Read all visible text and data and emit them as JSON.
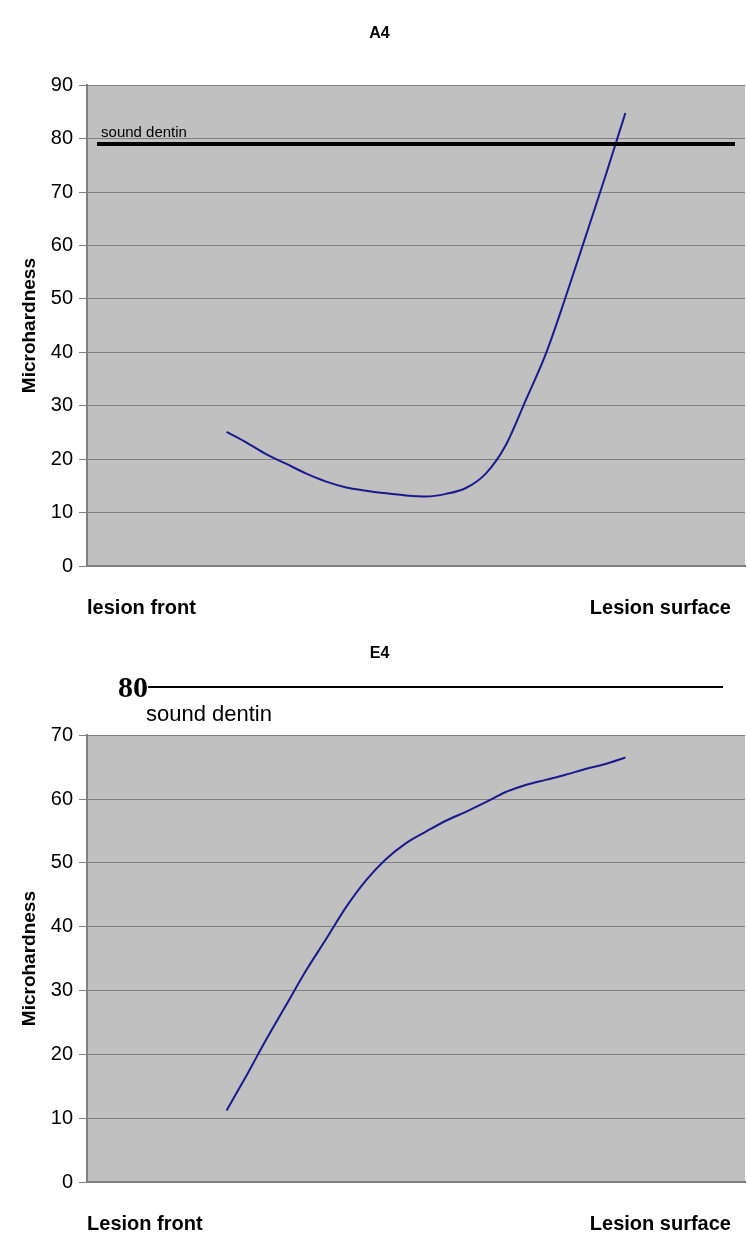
{
  "chart_data": [
    {
      "type": "line",
      "title": "A4",
      "ylabel": "Microhardness",
      "categories": [
        null,
        null,
        null,
        null,
        null,
        null,
        null,
        null,
        null,
        null,
        null,
        null,
        null,
        null,
        null,
        null,
        null,
        null,
        null,
        null,
        null,
        null,
        null,
        null,
        null,
        null,
        null,
        null,
        null,
        null,
        null,
        null,
        null,
        null
      ],
      "series": [
        {
          "color": "#1a1a8c",
          "values": [
            null,
            null,
            null,
            null,
            null,
            null,
            null,
            25.1,
            23.1,
            20.9,
            19.1,
            17.3,
            15.8,
            14.7,
            14.1,
            13.6,
            13.2,
            13.0,
            13.5,
            14.6,
            17.3,
            22.6,
            31.0,
            39.6,
            50.3,
            61.6,
            73.0,
            84.8,
            null,
            null,
            null,
            null,
            null,
            null
          ]
        }
      ],
      "ylim": [
        0,
        90
      ],
      "yticks": [
        0,
        10,
        20,
        30,
        40,
        50,
        60,
        70,
        80,
        90
      ],
      "grid": "y",
      "tick_labels": "y",
      "ref_lines": [
        {
          "axis": "y",
          "value": 79,
          "label": "sound dentin",
          "color": "#000000"
        }
      ],
      "annotations": [
        "lesion front",
        "Lesion surface"
      ]
    },
    {
      "type": "line",
      "title": "E4",
      "ylabel": "Microhardness",
      "categories": [
        null,
        null,
        null,
        null,
        null,
        null,
        null,
        null,
        null,
        null,
        null,
        null,
        null,
        null,
        null,
        null,
        null,
        null,
        null,
        null,
        null,
        null,
        null,
        null,
        null,
        null,
        null,
        null,
        null,
        null,
        null,
        null,
        null,
        null
      ],
      "series": [
        {
          "color": "#1a1a8c",
          "values": [
            null,
            null,
            null,
            null,
            null,
            null,
            null,
            11.2,
            16.7,
            22.4,
            27.8,
            33.2,
            38.1,
            43.1,
            47.3,
            50.6,
            53.1,
            54.9,
            56.6,
            58.0,
            59.5,
            61.1,
            62.2,
            63.0,
            63.8,
            64.7,
            65.5,
            66.5,
            null,
            null,
            null,
            null,
            null,
            null
          ]
        }
      ],
      "ylim": [
        0,
        70
      ],
      "yticks": [
        0,
        10,
        20,
        30,
        40,
        50,
        60,
        70
      ],
      "grid": "y",
      "tick_labels": "y",
      "annotations": [
        "80",
        "sound dentin",
        "Lesion front",
        "Lesion surface"
      ]
    }
  ]
}
